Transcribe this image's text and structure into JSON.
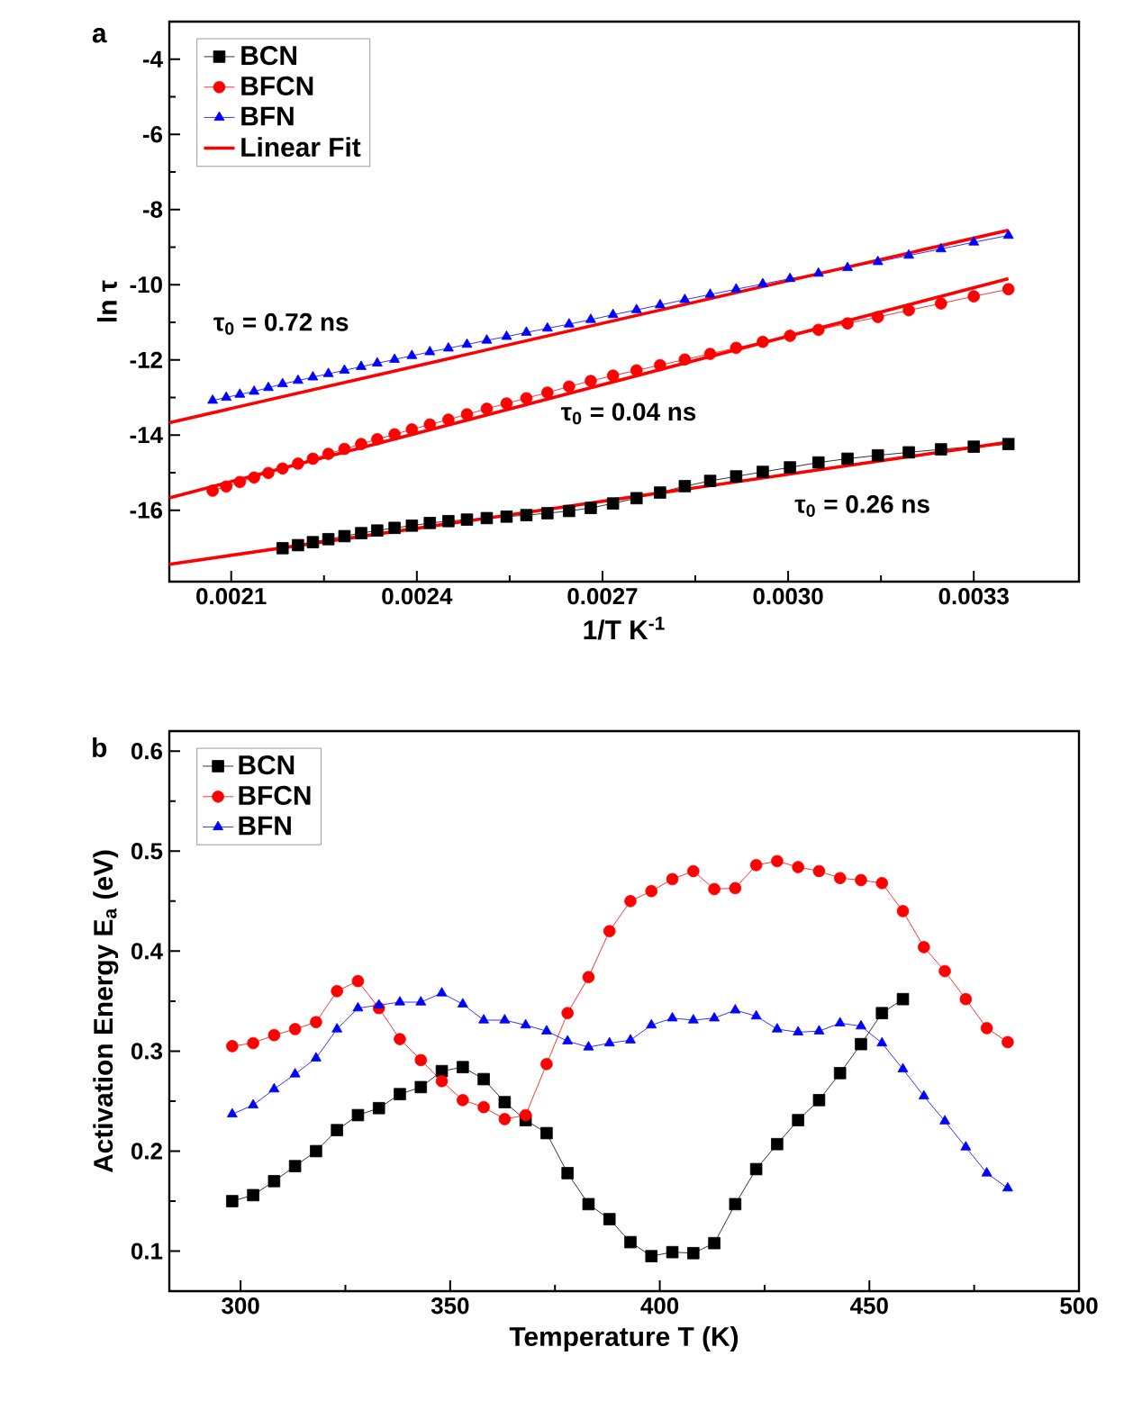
{
  "chart_data": [
    {
      "type": "line",
      "xlabel": "1/T   K$^{-1}$",
      "ylabel": "ln τ",
      "xlim": [
        0.002,
        0.00347
      ],
      "ylim": [
        -17.9,
        -3.0
      ],
      "xticks": [
        0.0021,
        0.0024,
        0.0027,
        {
          "value": 0.003,
          "label": "0.0030"
        },
        0.0033
      ],
      "yticks": [
        -16,
        -14,
        -12,
        -10,
        -8,
        -6,
        -4
      ],
      "legend": "top left",
      "annotations": [
        "a",
        "τ$_{0}$ = 0.72  ns",
        "τ$_{0}$ = 0.04  ns",
        "τ$_{0}$ = 0.26  ns"
      ],
      "series": [
        {
          "name": "BCN",
          "color": "#000000",
          "marker": "square",
          "x": [
            0.003356,
            0.0033,
            0.003247,
            0.003195,
            0.003145,
            0.003096,
            0.003049,
            0.003003,
            0.002959,
            0.002916,
            0.002874,
            0.002833,
            0.002793,
            0.002755,
            0.002717,
            0.002681,
            0.002646,
            0.002611,
            0.002577,
            0.002545,
            0.002513,
            0.002481,
            0.002451,
            0.002421,
            0.002392,
            0.002364,
            0.002336,
            0.00231,
            0.002283,
            0.002257,
            0.002232,
            0.002208,
            0.002183
          ],
          "values": [
            -14.24,
            -14.31,
            -14.38,
            -14.46,
            -14.54,
            -14.63,
            -14.73,
            -14.86,
            -14.98,
            -15.1,
            -15.22,
            -15.36,
            -15.53,
            -15.68,
            -15.82,
            -15.94,
            -16.02,
            -16.08,
            -16.13,
            -16.17,
            -16.21,
            -16.25,
            -16.29,
            -16.34,
            -16.41,
            -16.47,
            -16.54,
            -16.61,
            -16.69,
            -16.77,
            -16.85,
            -16.93,
            -17.01
          ]
        },
        {
          "name": "BFCN",
          "color": "#ff0000",
          "marker": "circle",
          "x": [
            0.003356,
            0.0033,
            0.003247,
            0.003195,
            0.003145,
            0.003096,
            0.003049,
            0.003003,
            0.002959,
            0.002916,
            0.002874,
            0.002833,
            0.002793,
            0.002755,
            0.002717,
            0.002681,
            0.002646,
            0.002611,
            0.002577,
            0.002545,
            0.002513,
            0.002481,
            0.002451,
            0.002421,
            0.002392,
            0.002364,
            0.002336,
            0.00231,
            0.002283,
            0.002257,
            0.002232,
            0.002208,
            0.002183,
            0.00216,
            0.002137,
            0.002114,
            0.002092,
            0.00207
          ],
          "values": [
            -10.12,
            -10.31,
            -10.5,
            -10.68,
            -10.86,
            -11.03,
            -11.2,
            -11.36,
            -11.52,
            -11.68,
            -11.84,
            -11.99,
            -12.14,
            -12.28,
            -12.42,
            -12.56,
            -12.71,
            -12.87,
            -13.02,
            -13.16,
            -13.3,
            -13.45,
            -13.59,
            -13.72,
            -13.85,
            -13.98,
            -14.11,
            -14.24,
            -14.37,
            -14.5,
            -14.63,
            -14.76,
            -14.89,
            -15.01,
            -15.13,
            -15.25,
            -15.37,
            -15.48
          ]
        },
        {
          "name": "BFN",
          "color": "#0000ff",
          "marker": "triangle",
          "x": [
            0.003356,
            0.0033,
            0.003247,
            0.003195,
            0.003145,
            0.003096,
            0.003049,
            0.003003,
            0.002959,
            0.002916,
            0.002874,
            0.002833,
            0.002793,
            0.002755,
            0.002717,
            0.002681,
            0.002646,
            0.002611,
            0.002577,
            0.002545,
            0.002513,
            0.002481,
            0.002451,
            0.002421,
            0.002392,
            0.002364,
            0.002336,
            0.00231,
            0.002283,
            0.002257,
            0.002232,
            0.002208,
            0.002183,
            0.00216,
            0.002137,
            0.002114,
            0.002092,
            0.00207
          ],
          "values": [
            -8.69,
            -8.87,
            -9.05,
            -9.22,
            -9.39,
            -9.55,
            -9.7,
            -9.84,
            -9.98,
            -10.12,
            -10.26,
            -10.4,
            -10.54,
            -10.67,
            -10.8,
            -10.93,
            -11.05,
            -11.16,
            -11.27,
            -11.38,
            -11.48,
            -11.59,
            -11.69,
            -11.79,
            -11.89,
            -11.99,
            -12.09,
            -12.18,
            -12.28,
            -12.37,
            -12.46,
            -12.55,
            -12.64,
            -12.74,
            -12.84,
            -12.92,
            -13.0,
            -13.08
          ]
        },
        {
          "name": "Linear Fit",
          "type": "line",
          "color": "#ff0000",
          "marker": "none",
          "x": [
            0.002,
            0.003356
          ],
          "values": [
            -17.44,
            -14.19
          ]
        },
        {
          "type": "line",
          "color": "#ff0000",
          "marker": "none",
          "x": [
            0.002,
            0.003356
          ],
          "values": [
            -15.67,
            -9.84
          ]
        },
        {
          "type": "line",
          "color": "#ff0000",
          "marker": "none",
          "x": [
            0.002,
            0.003356
          ],
          "values": [
            -13.67,
            -8.55
          ]
        }
      ]
    },
    {
      "type": "line",
      "xlabel": "Temperature T (K)",
      "ylabel": "Activation Energy E$_{a}$ (eV)",
      "xlim": [
        283,
        500
      ],
      "ylim": [
        0.06,
        0.62
      ],
      "xticks": [
        300,
        350,
        400,
        450,
        500
      ],
      "yticks": [
        0.1,
        0.2,
        0.3,
        0.4,
        0.5,
        0.6
      ],
      "legend": "top left",
      "annotations": [
        "b"
      ],
      "x": [
        298,
        303,
        308,
        313,
        318,
        323,
        328,
        333,
        338,
        343,
        348,
        353,
        358,
        363,
        368,
        373,
        378,
        383,
        388,
        393,
        398,
        403,
        408,
        413,
        418,
        423,
        428,
        433,
        438,
        443,
        448,
        453,
        458,
        463,
        468,
        473,
        478,
        483
      ],
      "series": [
        {
          "name": "BCN",
          "color": "#000000",
          "marker": "square",
          "x": [
            298,
            303,
            308,
            313,
            318,
            323,
            328,
            333,
            338,
            343,
            348,
            353,
            358,
            363,
            368,
            373,
            378,
            383,
            388,
            393,
            398,
            403,
            408,
            413,
            418,
            423,
            428,
            433,
            438,
            443,
            448,
            453,
            458
          ],
          "values": [
            0.15,
            0.156,
            0.17,
            0.185,
            0.2,
            0.221,
            0.236,
            0.243,
            0.257,
            0.264,
            0.28,
            0.284,
            0.272,
            0.249,
            0.231,
            0.218,
            0.178,
            0.147,
            0.132,
            0.109,
            0.095,
            0.099,
            0.098,
            0.108,
            0.147,
            0.182,
            0.207,
            0.231,
            0.251,
            0.278,
            0.307,
            0.338,
            0.352
          ]
        },
        {
          "name": "BFCN",
          "color": "#ff0000",
          "marker": "circle",
          "values": [
            0.305,
            0.308,
            0.316,
            0.322,
            0.329,
            0.36,
            0.37,
            0.343,
            0.312,
            0.291,
            0.27,
            0.251,
            0.244,
            0.232,
            0.236,
            0.287,
            0.338,
            0.374,
            0.42,
            0.45,
            0.46,
            0.472,
            0.48,
            0.462,
            0.463,
            0.486,
            0.49,
            0.484,
            0.48,
            0.473,
            0.471,
            0.468,
            0.44,
            0.404,
            0.38,
            0.352,
            0.323,
            0.309
          ]
        },
        {
          "name": "BFN",
          "color": "#0000ff",
          "marker": "triangle",
          "values": [
            0.237,
            0.246,
            0.262,
            0.277,
            0.293,
            0.322,
            0.343,
            0.346,
            0.349,
            0.349,
            0.358,
            0.347,
            0.331,
            0.331,
            0.326,
            0.32,
            0.31,
            0.304,
            0.308,
            0.311,
            0.326,
            0.333,
            0.331,
            0.333,
            0.341,
            0.335,
            0.322,
            0.319,
            0.32,
            0.328,
            0.325,
            0.308,
            0.282,
            0.255,
            0.23,
            0.204,
            0.178,
            0.163
          ]
        }
      ]
    }
  ]
}
